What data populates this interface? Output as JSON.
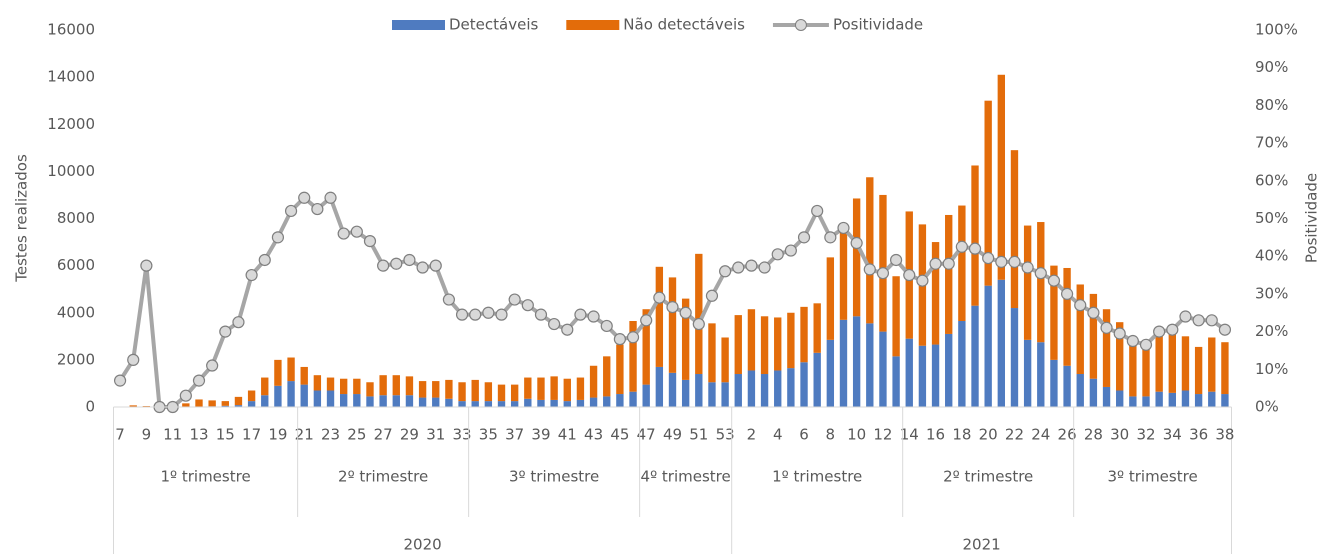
{
  "chart_data": {
    "type": "bar-line",
    "y_label": "Testes realizados",
    "y2_label": "Positividade",
    "categories": [
      "7",
      null,
      "9",
      null,
      "11",
      null,
      "13",
      null,
      "15",
      null,
      "17",
      null,
      "19",
      null,
      "21",
      null,
      "23",
      null,
      "25",
      null,
      "27",
      null,
      "29",
      null,
      "31",
      null,
      "33",
      null,
      "35",
      null,
      "37",
      null,
      "39",
      null,
      "41",
      null,
      "43",
      null,
      "45",
      null,
      "47",
      null,
      "49",
      null,
      "51",
      null,
      "53",
      null,
      "2",
      null,
      "4",
      null,
      "6",
      null,
      "8",
      null,
      "10",
      null,
      "12",
      null,
      "14",
      null,
      "16",
      null,
      "18",
      null,
      "20",
      null,
      "22",
      null,
      "24",
      null,
      "26",
      null,
      "28",
      null,
      "30",
      null,
      "32",
      null,
      "34",
      null,
      "36",
      null,
      "38"
    ],
    "groups": [
      {
        "label": "2020",
        "subgroups": [
          {
            "label": "1º trimestre",
            "span": 14
          },
          {
            "label": "2º trimestre",
            "span": 13
          },
          {
            "label": "3º trimestre",
            "span": 13
          },
          {
            "label": "4º trimestre",
            "span": 7
          }
        ]
      },
      {
        "label": "2021",
        "subgroups": [
          {
            "label": "1º trimestre",
            "span": 13
          },
          {
            "label": "2º trimestre",
            "span": 13
          },
          {
            "label": "3º trimestre",
            "span": 12
          }
        ]
      }
    ],
    "series": [
      {
        "name": "Detectáveis",
        "color": "#4f7bc0",
        "stack": true,
        "values": [
          0,
          10,
          15,
          0,
          0,
          5,
          20,
          30,
          50,
          80,
          250,
          500,
          900,
          1100,
          950,
          700,
          700,
          550,
          550,
          450,
          500,
          500,
          500,
          400,
          400,
          350,
          250,
          250,
          250,
          250,
          250,
          350,
          300,
          300,
          250,
          300,
          400,
          450,
          550,
          650,
          950,
          1700,
          1450,
          1150,
          1400,
          1050,
          1050,
          1400,
          1550,
          1400,
          1550,
          1650,
          1900,
          2300,
          2850,
          3700,
          3850,
          3550,
          3200,
          2150,
          2900,
          2600,
          2650,
          3100,
          3650,
          4300,
          5150,
          5400,
          4200,
          2850,
          2750,
          2000,
          1750,
          1400,
          1200,
          850,
          700,
          450,
          450,
          650,
          600,
          700,
          550,
          650,
          550
        ]
      },
      {
        "name": "Não detectáveis",
        "color": "#e36c0a",
        "stack": true,
        "values": [
          0,
          60,
          25,
          0,
          50,
          150,
          300,
          250,
          200,
          350,
          450,
          750,
          1100,
          1000,
          750,
          650,
          550,
          650,
          650,
          600,
          850,
          850,
          800,
          700,
          700,
          800,
          800,
          900,
          800,
          700,
          700,
          900,
          950,
          1000,
          950,
          950,
          1350,
          1700,
          2100,
          3000,
          3200,
          4250,
          4050,
          3450,
          5100,
          2500,
          1900,
          2500,
          2600,
          2450,
          2250,
          2350,
          2350,
          2100,
          3500,
          3800,
          5000,
          6200,
          5800,
          3400,
          5400,
          5150,
          4350,
          5050,
          4900,
          5950,
          7850,
          8700,
          6700,
          4850,
          5100,
          4000,
          4150,
          3800,
          3600,
          3300,
          2900,
          2350,
          2250,
          2450,
          2500,
          2300,
          2000,
          2300,
          2200
        ]
      },
      {
        "name": "Positividade",
        "color": "#a6a6a6",
        "axis": "y2",
        "line": true,
        "values": [
          7,
          12.5,
          37.5,
          0,
          0,
          3,
          7,
          11,
          20,
          22.5,
          35,
          39,
          45,
          52,
          55.5,
          52.5,
          55.5,
          46,
          46.5,
          44,
          37.5,
          38,
          39,
          37,
          37.5,
          28.5,
          24.5,
          24.5,
          25,
          24.5,
          28.5,
          27,
          24.5,
          22,
          20.5,
          24.5,
          24,
          21.5,
          18,
          18.5,
          23,
          29,
          26.5,
          25,
          22,
          29.5,
          36,
          37,
          37.5,
          37,
          40.5,
          41.5,
          45,
          52,
          45,
          47.5,
          43.5,
          36.5,
          35.5,
          39,
          35,
          33.5,
          38,
          38,
          42.5,
          42,
          39.5,
          38.5,
          38.5,
          37,
          35.5,
          33.5,
          30,
          27,
          25,
          21,
          19.5,
          17.5,
          16.5,
          20,
          20.5,
          24,
          23,
          23,
          20.5
        ]
      }
    ],
    "ylim": [
      0,
      16000
    ],
    "yticks": [
      0,
      2000,
      4000,
      6000,
      8000,
      10000,
      12000,
      14000,
      16000
    ],
    "y2lim": [
      0,
      100
    ],
    "y2ticks": [
      {
        "value": 0,
        "label": "0%"
      },
      {
        "value": 10,
        "label": "10%"
      },
      {
        "value": 20,
        "label": "20%"
      },
      {
        "value": 30,
        "label": "30%"
      },
      {
        "value": 40,
        "label": "40%"
      },
      {
        "value": 50,
        "label": "50%"
      },
      {
        "value": 60,
        "label": "60%"
      },
      {
        "value": 70,
        "label": "70%"
      },
      {
        "value": 80,
        "label": "80%"
      },
      {
        "value": 90,
        "label": "90%"
      },
      {
        "value": 100,
        "label": "100%"
      }
    ],
    "legend": "top"
  }
}
